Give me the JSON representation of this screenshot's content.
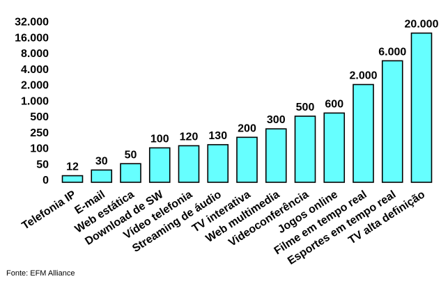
{
  "chart_data": {
    "type": "bar",
    "categories": [
      "Telefonia IP",
      "E-mail",
      "Web estática",
      "Download de SW",
      "Vídeo telefonia",
      "Streaming de áudio",
      "TV interativa",
      "Web multimedia",
      "Videoconferência",
      "Jogos online",
      "Filme em tempo real",
      "Esportes em tempo real",
      "TV alta definição"
    ],
    "values": [
      12,
      30,
      50,
      100,
      120,
      130,
      200,
      300,
      500,
      600,
      2000,
      6000,
      20000
    ],
    "value_labels": [
      "12",
      "30",
      "50",
      "100",
      "120",
      "130",
      "200",
      "300",
      "500",
      "600",
      "2.000",
      "6.000",
      "20.000"
    ],
    "y_ticks": [
      0,
      50,
      100,
      250,
      500,
      1000,
      2000,
      4000,
      8000,
      16000,
      32000
    ],
    "y_tick_labels": [
      "0",
      "50",
      "100",
      "250",
      "500",
      "1.000",
      "2.000",
      "4.000",
      "8.000",
      "16.000",
      "32.000"
    ],
    "y_scale": "non-linear (equal spacing between ticks)",
    "ylim": [
      0,
      32000
    ],
    "grid": false,
    "legend": "none",
    "bar_color": "#66FFFF",
    "title": "",
    "xlabel": "",
    "ylabel": ""
  },
  "source": "Fonte: EFM Alliance"
}
